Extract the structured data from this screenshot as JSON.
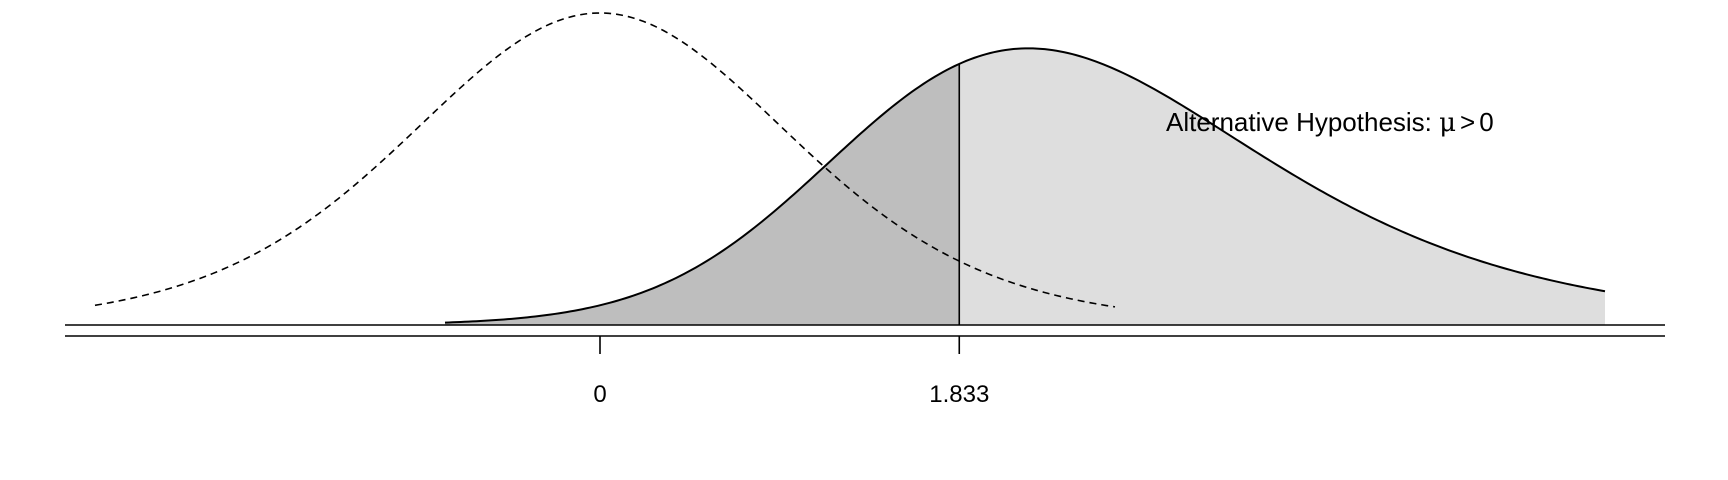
{
  "chart_data": {
    "type": "area",
    "title": "",
    "xlabel": "",
    "ylabel": "",
    "xlim": [
      -5.5,
      10.8
    ],
    "ylim": [
      0,
      0.4
    ],
    "grid": false,
    "critical_value": 1.833,
    "x_ticks": [
      {
        "value": 0,
        "label": "0"
      },
      {
        "value": 1.833,
        "label": "1.833"
      }
    ],
    "annotation": {
      "text": "Alternative Hypothesis: ",
      "symbol": "μ",
      "relation": ">",
      "value": "0"
    },
    "series": [
      {
        "role": "null",
        "line_style": "dashed",
        "stroke_color": "#000000",
        "distribution": "t",
        "df": 9,
        "location": 0
      },
      {
        "role": "alternative",
        "line_style": "solid",
        "stroke_color": "#000000",
        "distribution": "noncentral-t",
        "df": 9,
        "ncp": 2.35,
        "shade_left_of_critical": "#bebebe",
        "shade_right_of_critical": "#dedede"
      }
    ]
  }
}
